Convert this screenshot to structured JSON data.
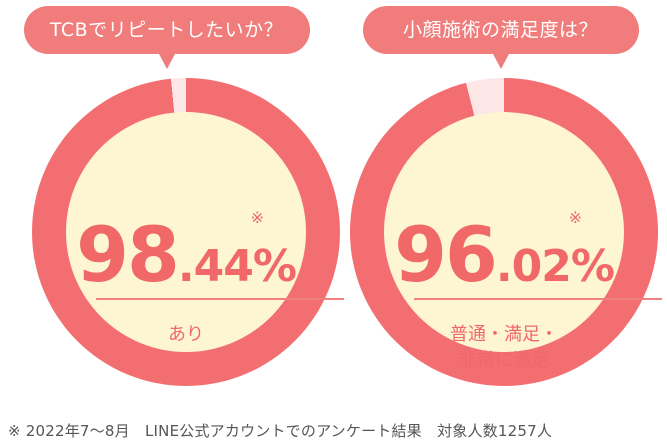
{
  "footnote": "※ 2022年7〜8月　LINE公式アカウントでのアンケート結果　対象人数1257人",
  "colors": {
    "accent": "#f07c7c",
    "ring": "#f36e70",
    "ring_remainder": "#fde6e6",
    "inner": "#fef6d3",
    "text_accent": "#f06868"
  },
  "panels": [
    {
      "bubble": "TCBでリピートしたいか？",
      "percent_int": "98",
      "percent_dec": ".44",
      "percent_sign": "%",
      "percent_value": 98.44,
      "note_mark": "※",
      "label_line1": "あり",
      "label_line2": ""
    },
    {
      "bubble": "小顔施術の満足度は？",
      "percent_int": "96",
      "percent_dec": ".02",
      "percent_sign": "%",
      "percent_value": 96.02,
      "note_mark": "※",
      "label_line1": "普通・満足・",
      "label_line2": "非常に満足"
    }
  ]
}
